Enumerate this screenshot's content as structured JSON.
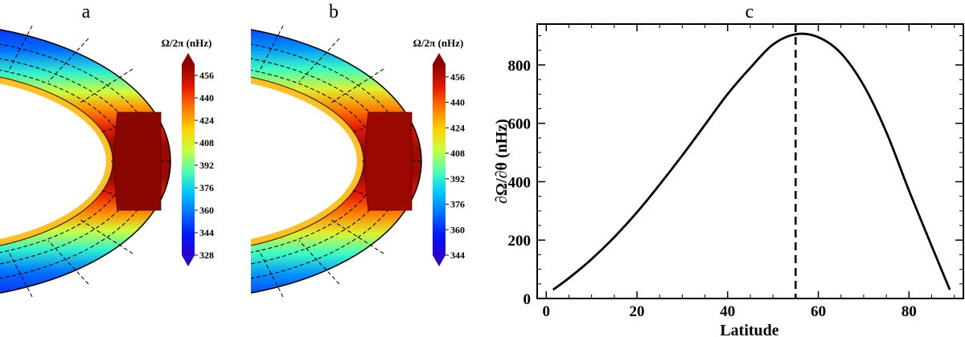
{
  "panel_labels": [
    "a",
    "b",
    "c"
  ],
  "colorbar_a": {
    "title": "Ω/2π (nHz)",
    "ticks": [
      "456",
      "440",
      "424",
      "408",
      "392",
      "376",
      "360",
      "344",
      "328"
    ]
  },
  "colorbar_b": {
    "title": "Ω/2π (nHz)",
    "ticks": [
      "456",
      "440",
      "424",
      "408",
      "392",
      "376",
      "360",
      "344"
    ]
  },
  "colors": {
    "rainbow": [
      "#000090",
      "#0000ff",
      "#0060ff",
      "#00c8ff",
      "#40ffbe",
      "#b4ff4a",
      "#ffdc00",
      "#ff7800",
      "#e61400",
      "#8c0000"
    ]
  },
  "chart_data": [
    {
      "panel": "a",
      "type": "heatmap",
      "title": "a",
      "colorbar_label": "Ω/2π (nHz)",
      "colorbar_ticks": [
        456,
        440,
        424,
        408,
        392,
        376,
        360,
        344,
        328
      ],
      "value_range": [
        328,
        464
      ]
    },
    {
      "panel": "b",
      "type": "heatmap",
      "title": "b",
      "colorbar_label": "Ω/2π (nHz)",
      "colorbar_ticks": [
        456,
        440,
        424,
        408,
        392,
        376,
        360,
        344
      ],
      "value_range": [
        344,
        464
      ]
    },
    {
      "panel": "c",
      "type": "line",
      "title": "c",
      "xlabel": "Latitude",
      "ylabel": "∂Ω/∂θ (nHz)",
      "xlim": [
        -2,
        92
      ],
      "ylim": [
        0,
        940
      ],
      "xticks": [
        0,
        20,
        40,
        60,
        80
      ],
      "yticks": [
        0,
        200,
        400,
        600,
        800
      ],
      "vline_x": 55,
      "series": [
        {
          "name": "dOmega/dtheta",
          "x": [
            1.5,
            5,
            10,
            15,
            20,
            25,
            30,
            35,
            40,
            45,
            50,
            55,
            60,
            65,
            70,
            75,
            80,
            85,
            89
          ],
          "y": [
            30,
            70,
            135,
            210,
            295,
            390,
            490,
            595,
            700,
            790,
            870,
            905,
            895,
            840,
            730,
            570,
            370,
            180,
            30
          ]
        }
      ]
    }
  ]
}
